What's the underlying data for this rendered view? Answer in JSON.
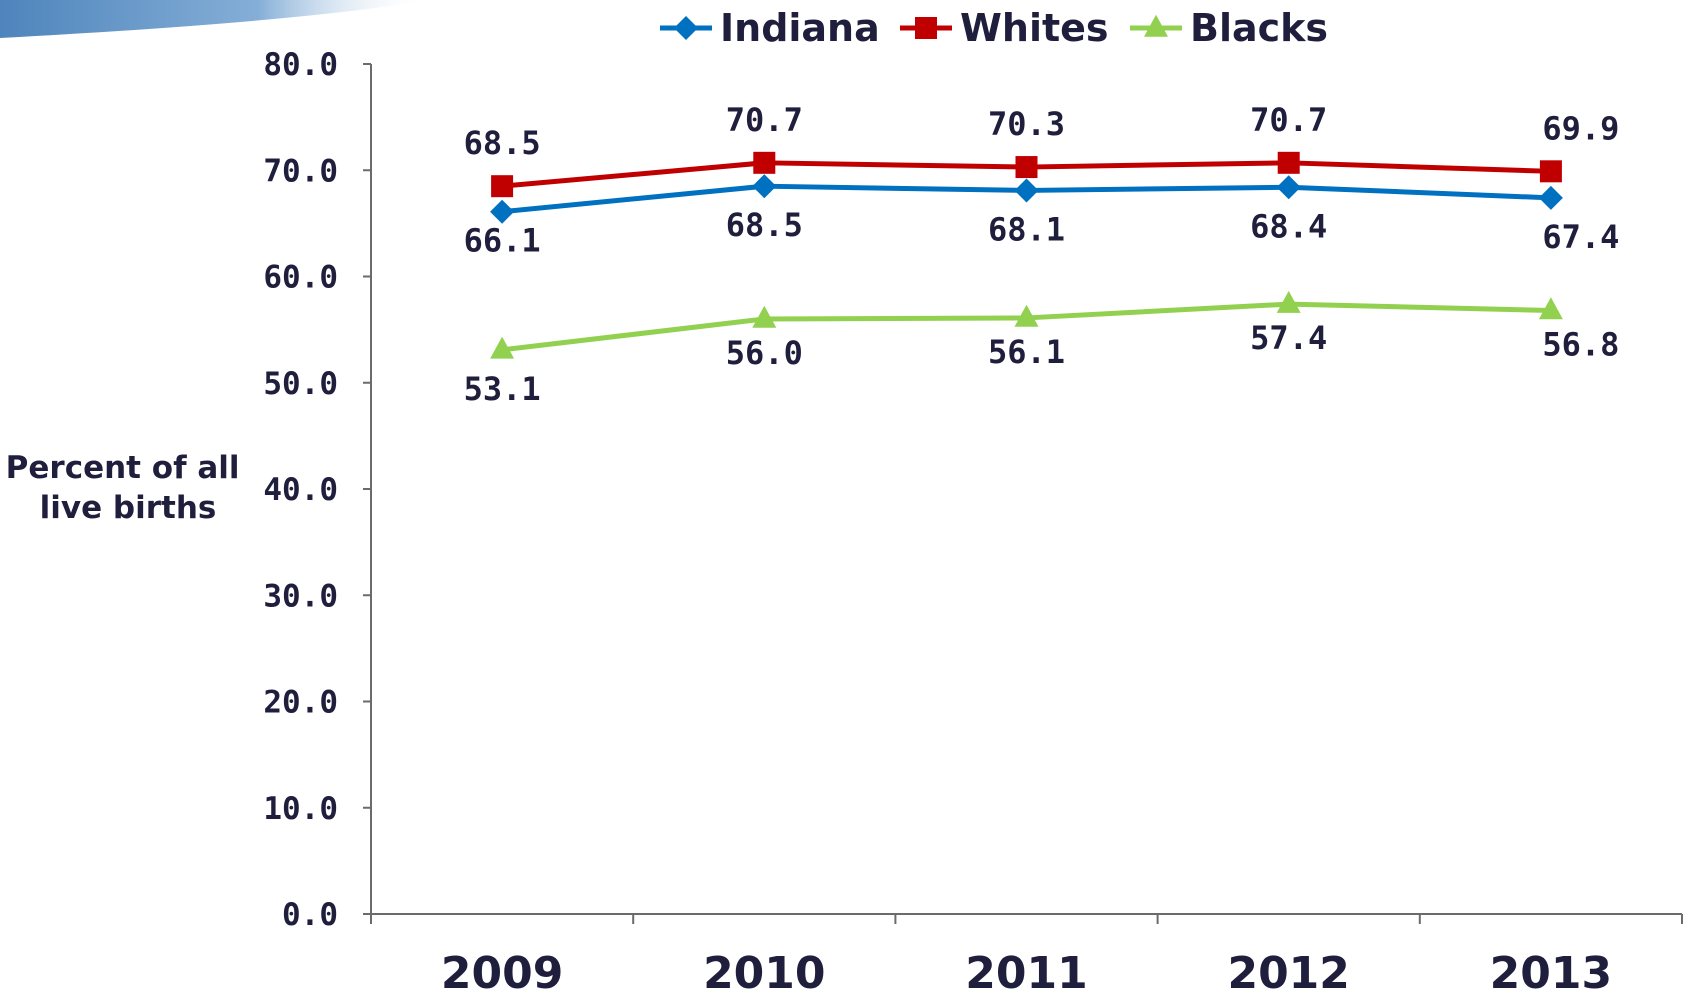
{
  "chart_data": {
    "type": "line",
    "ylabel": "Percent of all live births",
    "ylabel_lines": [
      "Percent of all",
      "live births"
    ],
    "ylim": [
      0,
      80
    ],
    "y_ticks": [
      "0.0",
      "10.0",
      "20.0",
      "30.0",
      "40.0",
      "50.0",
      "60.0",
      "70.0",
      "80.0"
    ],
    "categories": [
      "2009",
      "2010",
      "2011",
      "2012",
      "2013"
    ],
    "legend_position": "top",
    "grid": false,
    "series": [
      {
        "name": "Indiana",
        "color": "#0070c0",
        "marker": "diamond",
        "values": [
          66.1,
          68.5,
          68.1,
          68.4,
          67.4
        ],
        "labels": [
          "66.1",
          "68.5",
          "68.1",
          "68.4",
          "67.4"
        ]
      },
      {
        "name": "Whites",
        "color": "#c00000",
        "marker": "square",
        "values": [
          68.5,
          70.7,
          70.3,
          70.7,
          69.9
        ],
        "labels": [
          "68.5",
          "70.7",
          "70.3",
          "70.7",
          "69.9"
        ]
      },
      {
        "name": "Blacks",
        "color": "#92d050",
        "marker": "triangle",
        "values": [
          53.1,
          56.0,
          56.1,
          57.4,
          56.8
        ],
        "labels": [
          "53.1",
          "56.0",
          "56.1",
          "57.4",
          "56.8"
        ]
      }
    ]
  }
}
